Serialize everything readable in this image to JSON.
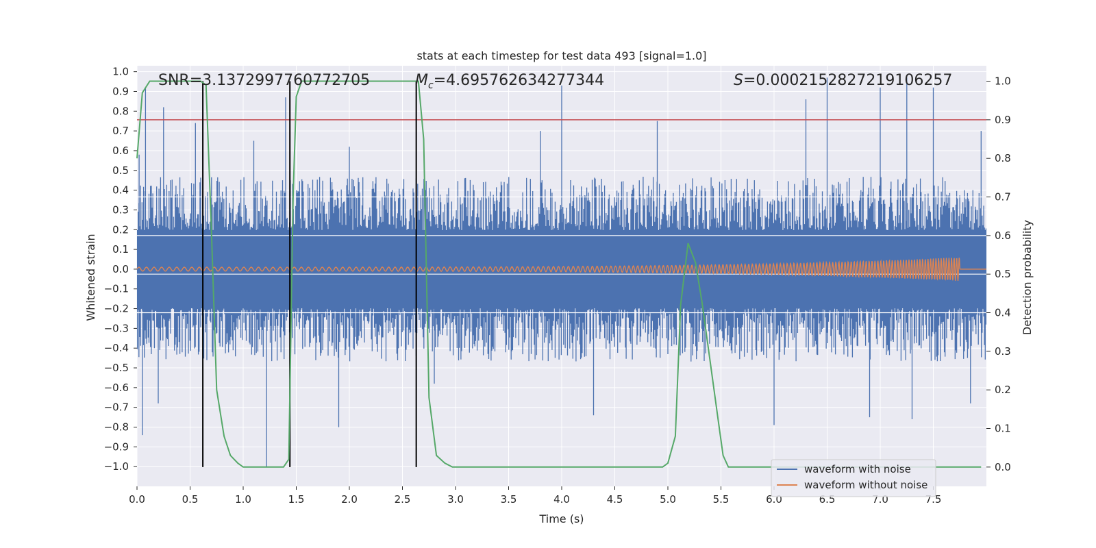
{
  "chart_data": {
    "type": "line",
    "title": "stats at each timestep for test data 493 [signal=1.0]",
    "xlabel": "Time (s)",
    "ylabel": "Whitened strain",
    "y2label": "Detection probability",
    "xlim": [
      0.0,
      8.0
    ],
    "ylim": [
      -1.1,
      1.03
    ],
    "y2lim": [
      -0.05,
      1.04
    ],
    "x_ticks": [
      0.0,
      0.5,
      1.0,
      1.5,
      2.0,
      2.5,
      3.0,
      3.5,
      4.0,
      4.5,
      5.0,
      5.5,
      6.0,
      6.5,
      7.0,
      7.5
    ],
    "x_tick_labels": [
      "0.0",
      "0.5",
      "1.0",
      "1.5",
      "2.0",
      "2.5",
      "3.0",
      "3.5",
      "4.0",
      "4.5",
      "5.0",
      "5.5",
      "6.0",
      "6.5",
      "7.0",
      "7.5"
    ],
    "y_ticks": [
      1.0,
      0.9,
      0.8,
      0.7,
      0.6,
      0.5,
      0.4,
      0.3,
      0.2,
      0.1,
      0.0,
      -0.1,
      -0.2,
      -0.3,
      -0.4,
      -0.5,
      -0.6,
      -0.7,
      -0.8,
      -0.9,
      -1.0
    ],
    "y_tick_labels": [
      "1.0",
      "0.9",
      "0.8",
      "0.7",
      "0.6",
      "0.5",
      "0.4",
      "0.3",
      "0.2",
      "0.1",
      "0.0",
      "−0.1",
      "−0.2",
      "−0.3",
      "−0.4",
      "−0.5",
      "−0.6",
      "−0.7",
      "−0.8",
      "−0.9",
      "−1.0"
    ],
    "y2_ticks": [
      1.0,
      0.9,
      0.8,
      0.7,
      0.6,
      0.5,
      0.4,
      0.3,
      0.2,
      0.1,
      0.0
    ],
    "y2_tick_labels": [
      "1.0",
      "0.9",
      "0.8",
      "0.7",
      "0.6",
      "0.5",
      "0.4",
      "0.3",
      "0.2",
      "0.1",
      "0.0"
    ],
    "annotations": {
      "snr": "SNR=3.1372997760772705",
      "mc_symbol": "M",
      "mc_sub": "c",
      "mc_value": "=4.695762634277344",
      "s_symbol": "S",
      "s_value": "=0.0002152827219106257"
    },
    "threshold_y2": 0.9,
    "vertical_lines_x": [
      0.62,
      1.44,
      2.63
    ],
    "series": [
      {
        "name": "waveform with noise",
        "color": "#4c72b0",
        "kind": "noise",
        "envelope": {
          "typical_upper": 0.36,
          "typical_lower": -0.36,
          "spikes": [
            {
              "x": 0.02,
              "y": 0.58
            },
            {
              "x": 0.08,
              "y": 0.92
            },
            {
              "x": 0.25,
              "y": 0.82
            },
            {
              "x": 0.55,
              "y": 0.74
            },
            {
              "x": 1.1,
              "y": 0.65
            },
            {
              "x": 1.4,
              "y": 0.87
            },
            {
              "x": 2.0,
              "y": 0.62
            },
            {
              "x": 3.8,
              "y": 0.7
            },
            {
              "x": 4.0,
              "y": 0.93
            },
            {
              "x": 4.9,
              "y": 0.75
            },
            {
              "x": 6.3,
              "y": 0.86
            },
            {
              "x": 6.5,
              "y": 0.97
            },
            {
              "x": 7.0,
              "y": 0.92
            },
            {
              "x": 7.25,
              "y": 0.97
            },
            {
              "x": 7.5,
              "y": 0.92
            },
            {
              "x": 7.95,
              "y": 0.7
            },
            {
              "x": 0.05,
              "y": -0.84
            },
            {
              "x": 0.2,
              "y": -0.68
            },
            {
              "x": 1.22,
              "y": -1.0
            },
            {
              "x": 1.9,
              "y": -0.8
            },
            {
              "x": 2.8,
              "y": -0.58
            },
            {
              "x": 4.3,
              "y": -0.74
            },
            {
              "x": 6.0,
              "y": -0.79
            },
            {
              "x": 6.9,
              "y": -0.75
            },
            {
              "x": 7.3,
              "y": -0.76
            },
            {
              "x": 7.85,
              "y": -0.68
            }
          ]
        }
      },
      {
        "name": "waveform without noise",
        "color": "#dd8452",
        "kind": "chirp",
        "chirp": {
          "start_x": 0.0,
          "end_x": 7.75,
          "start_amp": 0.01,
          "end_amp": 0.06,
          "flat_after_end": true
        }
      },
      {
        "name": "detection probability",
        "color": "#55a868",
        "axis": "y2",
        "x": [
          0.0,
          0.05,
          0.12,
          0.2,
          0.3,
          0.4,
          0.5,
          0.6,
          0.65,
          0.7,
          0.75,
          0.82,
          0.88,
          0.95,
          1.0,
          1.1,
          1.2,
          1.3,
          1.38,
          1.43,
          1.47,
          1.5,
          1.55,
          1.6,
          2.0,
          2.4,
          2.6,
          2.65,
          2.7,
          2.75,
          2.82,
          2.9,
          2.97,
          3.05,
          3.5,
          4.0,
          4.5,
          4.95,
          5.0,
          5.07,
          5.12,
          5.19,
          5.26,
          5.32,
          5.4,
          5.47,
          5.52,
          5.57,
          6.0,
          6.5,
          7.0,
          7.5,
          7.95
        ],
        "values": [
          0.8,
          0.97,
          1.0,
          1.0,
          1.0,
          1.0,
          1.0,
          1.0,
          0.99,
          0.62,
          0.2,
          0.08,
          0.03,
          0.01,
          0.0,
          0.0,
          0.0,
          0.0,
          0.0,
          0.02,
          0.7,
          0.96,
          1.0,
          1.0,
          1.0,
          1.0,
          1.0,
          1.0,
          0.85,
          0.18,
          0.03,
          0.01,
          0.0,
          0.0,
          0.0,
          0.0,
          0.0,
          0.0,
          0.01,
          0.08,
          0.42,
          0.58,
          0.53,
          0.43,
          0.27,
          0.13,
          0.03,
          0.0,
          0.0,
          0.0,
          0.0,
          0.0,
          0.0
        ]
      }
    ],
    "threshold_color": "#c44e52",
    "vline_color": "#000000",
    "legend_entries": [
      "waveform with noise",
      "waveform without noise"
    ],
    "legend_position": "bottom-right"
  }
}
